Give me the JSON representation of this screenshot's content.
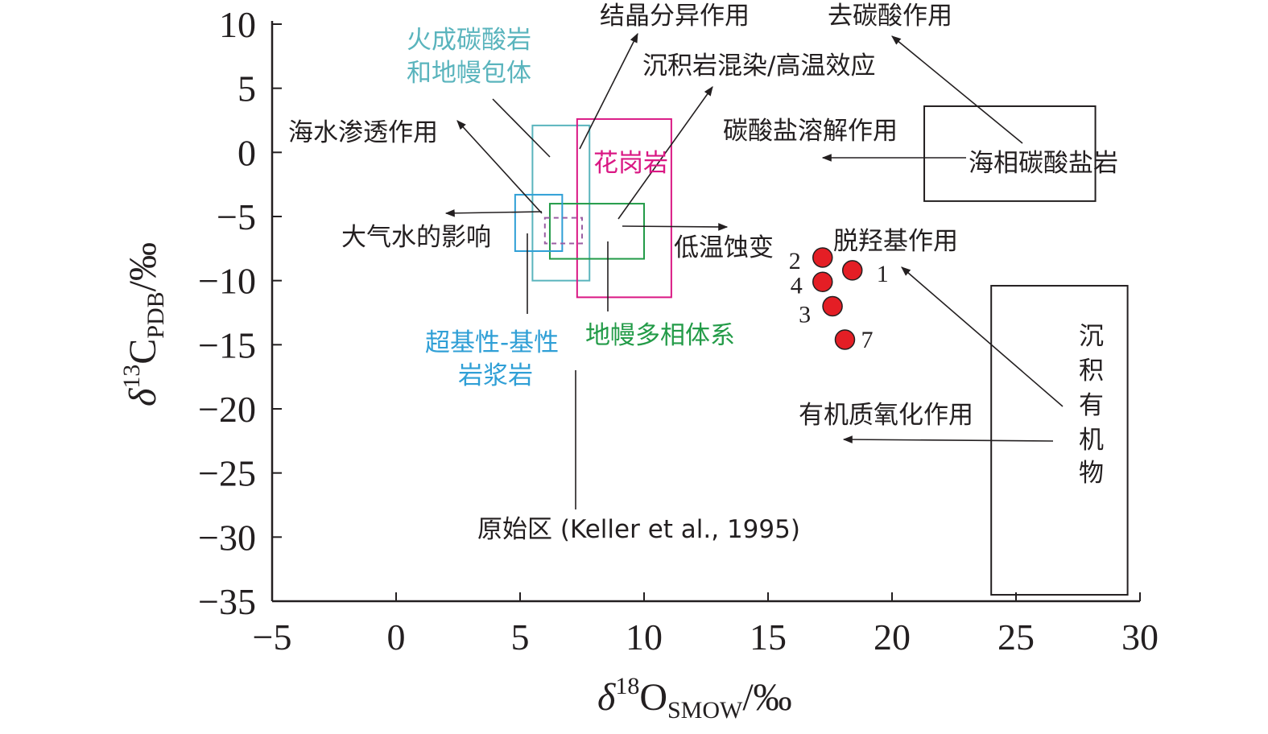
{
  "chart_data": {
    "type": "scatter",
    "xlim": [
      -5,
      30
    ],
    "ylim": [
      -35,
      10
    ],
    "x_ticks": [
      -5,
      0,
      5,
      10,
      15,
      20,
      25,
      30
    ],
    "y_ticks": [
      10,
      5,
      0,
      -5,
      -10,
      -15,
      -20,
      -25,
      -30,
      -35
    ],
    "x_tick_labels": [
      "−5",
      "0",
      "5",
      "10",
      "15",
      "20",
      "25",
      "30"
    ],
    "y_tick_labels": [
      "10",
      "5",
      "0",
      "−5",
      "−10",
      "−15",
      "−20",
      "−25",
      "−30",
      "−35"
    ],
    "xlabel": {
      "main": "δ",
      "sup": "18",
      "base": "O",
      "sub": "SMOW",
      "unit": "/‰"
    },
    "ylabel": {
      "main": "δ",
      "sup": "13",
      "base": "C",
      "sub": "PDB",
      "unit": "/‰"
    },
    "points": [
      {
        "label": "1",
        "x": 18.4,
        "y": -9.2
      },
      {
        "label": "2",
        "x": 17.2,
        "y": -8.2
      },
      {
        "label": "3",
        "x": 17.6,
        "y": -12.0
      },
      {
        "label": "4",
        "x": 17.2,
        "y": -10.1
      },
      {
        "label": "7",
        "x": 18.1,
        "y": -14.6
      }
    ],
    "point_color": "#e41e25",
    "fields": [
      {
        "name": "火成碳酸岩和地幔包体",
        "x": [
          5.5,
          7.8
        ],
        "y": [
          -10.0,
          2.1
        ],
        "color": "#5ab4bd",
        "dashed": false
      },
      {
        "name": "花岗岩",
        "x": [
          7.3,
          11.1
        ],
        "y": [
          -11.3,
          2.6
        ],
        "color": "#da1884",
        "dashed": false
      },
      {
        "name": "地幔多相体系",
        "x": [
          6.2,
          10.0
        ],
        "y": [
          -8.3,
          -4.0
        ],
        "color": "#239b48",
        "dashed": false
      },
      {
        "name": "超基性-基性岩浆岩",
        "x": [
          4.8,
          6.7
        ],
        "y": [
          -7.7,
          -3.3
        ],
        "color": "#2f9fd6",
        "dashed": false
      },
      {
        "name": "原始区 (Keller et al., 1995)",
        "x": [
          6.0,
          7.5
        ],
        "y": [
          -7.1,
          -5.1
        ],
        "color": "#9b5ea3",
        "dashed": true
      },
      {
        "name": "海相碳酸盐岩",
        "x": [
          21.3,
          28.2
        ],
        "y": [
          -3.8,
          3.6
        ],
        "color": "#231f20",
        "dashed": false
      },
      {
        "name": "沉积有机物",
        "x": [
          24.0,
          29.5
        ],
        "y": [
          -34.5,
          -10.4
        ],
        "color": "#231f20",
        "dashed": false
      }
    ],
    "annotations": {
      "crystallization": "结晶分异作用",
      "decarbonation": "去碳酸作用",
      "contamination": "沉积岩混染/高温效应",
      "seawater": "海水渗透作用",
      "carbonate_dissolution": "碳酸盐溶解作用",
      "meteoric": "大气水的影响",
      "low_temp": "低温蚀变",
      "decarboxylation": "脱羟基作用",
      "organic_oxidation": "有机质氧化作用",
      "primitive": "原始区 (Keller et al., 1995)"
    },
    "field_labels": {
      "carbonatite_line1": "火成碳酸岩",
      "carbonatite_line2": "和地幔包体",
      "granite": "花岗岩",
      "mantle": "地幔多相体系",
      "mafic_line1": "超基性-基性",
      "mafic_line2": "岩浆岩",
      "marine": "海相碳酸盐岩",
      "organic_chars": [
        "沉",
        "积",
        "有",
        "机",
        "物"
      ]
    }
  }
}
